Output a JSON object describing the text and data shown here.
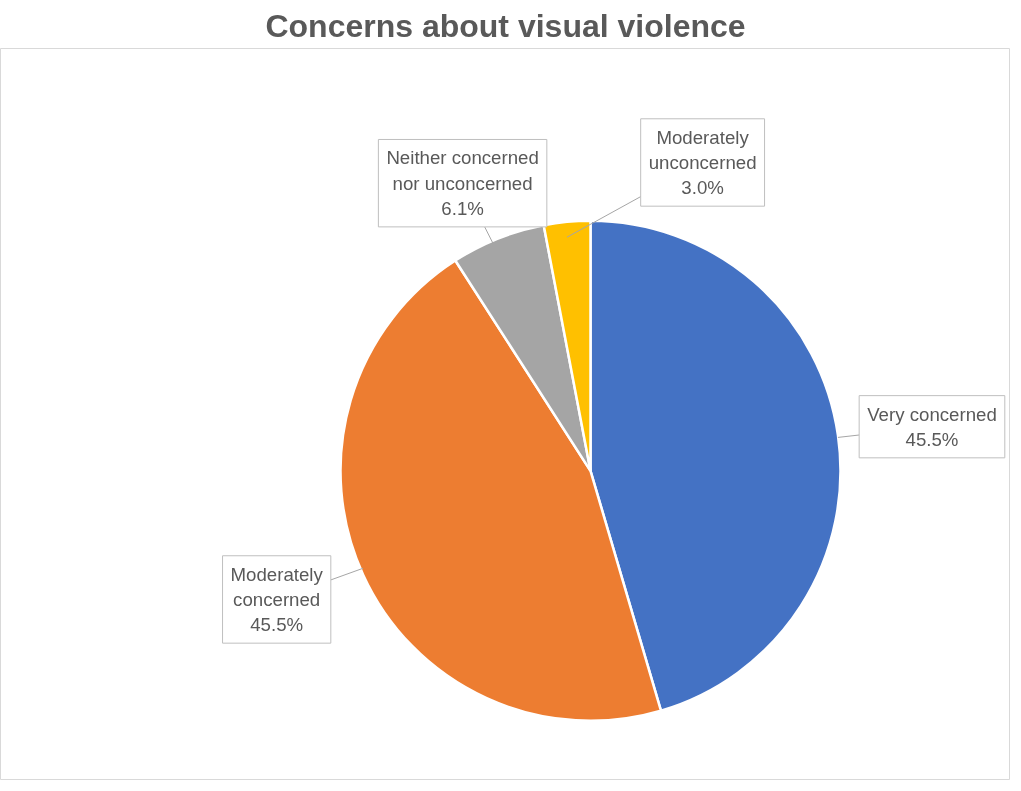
{
  "chart_data": {
    "type": "pie",
    "title": "Concerns about visual violence",
    "categories": [
      "Very concerned",
      "Moderately concerned",
      "Neither concerned nor unconcerned",
      "Moderately unconcerned"
    ],
    "values": [
      45.5,
      45.5,
      6.1,
      3.0
    ],
    "value_labels": [
      "45.5%",
      "45.5%",
      "6.1%",
      "3.0%"
    ],
    "colors": [
      "#4472c4",
      "#ed7d31",
      "#a5a5a5",
      "#ffc000"
    ]
  }
}
